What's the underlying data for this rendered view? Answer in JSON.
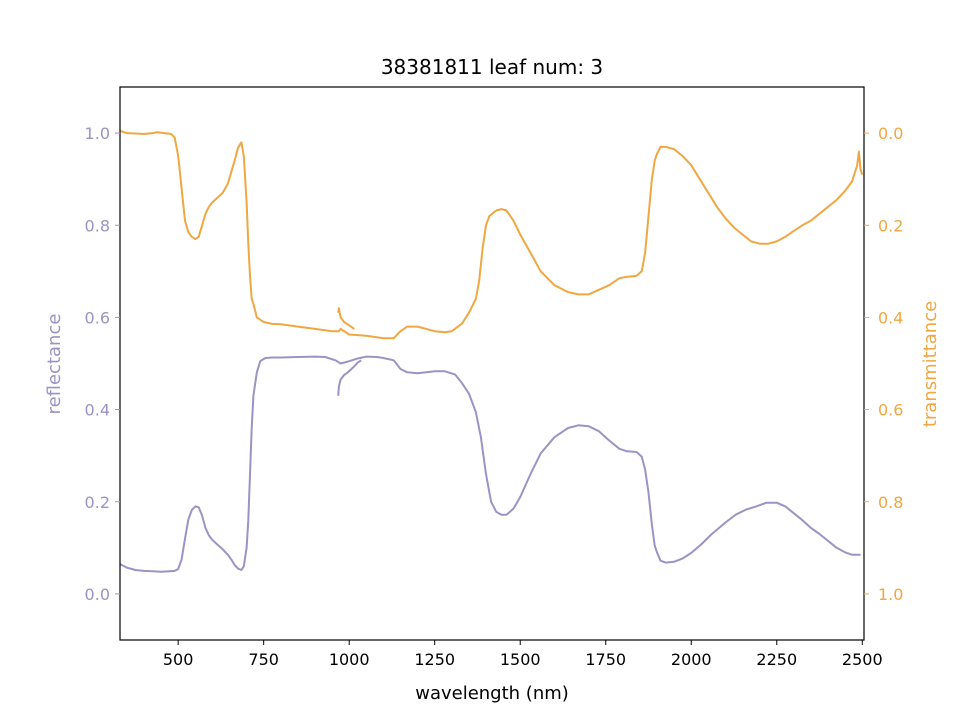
{
  "chart_data": {
    "type": "line",
    "title": "38381811 leaf num: 3",
    "xlabel": "wavelength (nm)",
    "xlim": [
      330,
      2505
    ],
    "x_ticks": [
      "500",
      "750",
      "1000",
      "1250",
      "1500",
      "1750",
      "2000",
      "2250",
      "2500"
    ],
    "grid": false,
    "axes": {
      "left": {
        "label": "reflectance",
        "color": "#9a94c4",
        "ylim": [
          -0.1,
          1.1
        ],
        "ticks": [
          "0.0",
          "0.2",
          "0.4",
          "0.6",
          "0.8",
          "1.0"
        ]
      },
      "right": {
        "label": "transmittance",
        "color": "#f0a742",
        "ylim": [
          1.1,
          -0.1
        ],
        "inverted": true,
        "ticks": [
          "0.0",
          "0.2",
          "0.4",
          "0.6",
          "0.8",
          "1.0"
        ]
      }
    },
    "series": [
      {
        "axis": "left",
        "color": "#9a94c4",
        "points": [
          [
            330,
            0.065
          ],
          [
            350,
            0.057
          ],
          [
            375,
            0.052
          ],
          [
            400,
            0.05
          ],
          [
            425,
            0.049
          ],
          [
            450,
            0.048
          ],
          [
            475,
            0.049
          ],
          [
            490,
            0.05
          ],
          [
            500,
            0.054
          ],
          [
            510,
            0.075
          ],
          [
            520,
            0.12
          ],
          [
            530,
            0.162
          ],
          [
            540,
            0.182
          ],
          [
            550,
            0.19
          ],
          [
            560,
            0.188
          ],
          [
            570,
            0.17
          ],
          [
            580,
            0.143
          ],
          [
            590,
            0.127
          ],
          [
            600,
            0.117
          ],
          [
            615,
            0.107
          ],
          [
            630,
            0.097
          ],
          [
            645,
            0.085
          ],
          [
            655,
            0.075
          ],
          [
            665,
            0.063
          ],
          [
            675,
            0.055
          ],
          [
            685,
            0.052
          ],
          [
            692,
            0.06
          ],
          [
            700,
            0.1
          ],
          [
            705,
            0.16
          ],
          [
            710,
            0.26
          ],
          [
            715,
            0.36
          ],
          [
            720,
            0.43
          ],
          [
            730,
            0.48
          ],
          [
            740,
            0.505
          ],
          [
            755,
            0.512
          ],
          [
            775,
            0.513
          ],
          [
            800,
            0.513
          ],
          [
            850,
            0.514
          ],
          [
            900,
            0.515
          ],
          [
            930,
            0.514
          ],
          [
            960,
            0.507
          ],
          [
            975,
            0.5
          ],
          [
            990,
            0.503
          ],
          [
            1000,
            0.505
          ],
          [
            1020,
            0.51
          ],
          [
            1050,
            0.515
          ],
          [
            1080,
            0.514
          ],
          [
            1100,
            0.512
          ],
          [
            1130,
            0.507
          ],
          [
            1150,
            0.488
          ],
          [
            1170,
            0.481
          ],
          [
            1200,
            0.479
          ],
          [
            1250,
            0.483
          ],
          [
            1280,
            0.483
          ],
          [
            1310,
            0.476
          ],
          [
            1330,
            0.457
          ],
          [
            1350,
            0.435
          ],
          [
            1370,
            0.395
          ],
          [
            1385,
            0.34
          ],
          [
            1400,
            0.26
          ],
          [
            1415,
            0.2
          ],
          [
            1430,
            0.178
          ],
          [
            1445,
            0.172
          ],
          [
            1460,
            0.172
          ],
          [
            1480,
            0.185
          ],
          [
            1500,
            0.21
          ],
          [
            1530,
            0.26
          ],
          [
            1560,
            0.305
          ],
          [
            1600,
            0.34
          ],
          [
            1640,
            0.36
          ],
          [
            1670,
            0.366
          ],
          [
            1700,
            0.364
          ],
          [
            1730,
            0.353
          ],
          [
            1760,
            0.333
          ],
          [
            1790,
            0.315
          ],
          [
            1810,
            0.31
          ],
          [
            1840,
            0.308
          ],
          [
            1855,
            0.298
          ],
          [
            1865,
            0.27
          ],
          [
            1875,
            0.22
          ],
          [
            1885,
            0.15
          ],
          [
            1893,
            0.105
          ],
          [
            1900,
            0.09
          ],
          [
            1910,
            0.072
          ],
          [
            1925,
            0.068
          ],
          [
            1950,
            0.07
          ],
          [
            1975,
            0.077
          ],
          [
            2000,
            0.089
          ],
          [
            2030,
            0.108
          ],
          [
            2060,
            0.13
          ],
          [
            2100,
            0.155
          ],
          [
            2130,
            0.172
          ],
          [
            2160,
            0.183
          ],
          [
            2190,
            0.19
          ],
          [
            2220,
            0.198
          ],
          [
            2250,
            0.198
          ],
          [
            2275,
            0.19
          ],
          [
            2300,
            0.175
          ],
          [
            2325,
            0.16
          ],
          [
            2350,
            0.143
          ],
          [
            2375,
            0.13
          ],
          [
            2400,
            0.115
          ],
          [
            2425,
            0.1
          ],
          [
            2450,
            0.09
          ],
          [
            2470,
            0.085
          ],
          [
            2485,
            0.085
          ],
          [
            2495,
            0.085
          ]
        ]
      },
      {
        "axis": "left",
        "color": "#9a94c4",
        "points": [
          [
            968,
            0.43
          ],
          [
            970,
            0.45
          ],
          [
            975,
            0.465
          ],
          [
            985,
            0.475
          ],
          [
            995,
            0.48
          ],
          [
            1005,
            0.487
          ],
          [
            1015,
            0.494
          ],
          [
            1025,
            0.502
          ],
          [
            1035,
            0.507
          ]
        ]
      },
      {
        "axis": "right",
        "color": "#f0a742",
        "points": [
          [
            330,
            -0.005
          ],
          [
            350,
            0.0
          ],
          [
            375,
            0.001
          ],
          [
            400,
            0.002
          ],
          [
            425,
            0.0
          ],
          [
            440,
            -0.002
          ],
          [
            460,
            0.0
          ],
          [
            480,
            0.002
          ],
          [
            490,
            0.01
          ],
          [
            500,
            0.05
          ],
          [
            510,
            0.12
          ],
          [
            520,
            0.19
          ],
          [
            530,
            0.215
          ],
          [
            540,
            0.225
          ],
          [
            550,
            0.23
          ],
          [
            560,
            0.225
          ],
          [
            570,
            0.2
          ],
          [
            580,
            0.175
          ],
          [
            590,
            0.16
          ],
          [
            600,
            0.15
          ],
          [
            615,
            0.14
          ],
          [
            630,
            0.13
          ],
          [
            645,
            0.11
          ],
          [
            655,
            0.085
          ],
          [
            665,
            0.06
          ],
          [
            675,
            0.032
          ],
          [
            685,
            0.02
          ],
          [
            692,
            0.05
          ],
          [
            700,
            0.15
          ],
          [
            705,
            0.24
          ],
          [
            710,
            0.31
          ],
          [
            715,
            0.36
          ],
          [
            720,
            0.37
          ],
          [
            730,
            0.4
          ],
          [
            740,
            0.405
          ],
          [
            750,
            0.41
          ],
          [
            775,
            0.414
          ],
          [
            800,
            0.415
          ],
          [
            850,
            0.42
          ],
          [
            900,
            0.425
          ],
          [
            950,
            0.43
          ],
          [
            970,
            0.43
          ],
          [
            975,
            0.425
          ],
          [
            1000,
            0.437
          ],
          [
            1050,
            0.44
          ],
          [
            1100,
            0.445
          ],
          [
            1130,
            0.445
          ],
          [
            1150,
            0.43
          ],
          [
            1170,
            0.42
          ],
          [
            1200,
            0.42
          ],
          [
            1250,
            0.43
          ],
          [
            1280,
            0.432
          ],
          [
            1300,
            0.43
          ],
          [
            1330,
            0.413
          ],
          [
            1350,
            0.39
          ],
          [
            1370,
            0.36
          ],
          [
            1380,
            0.32
          ],
          [
            1390,
            0.25
          ],
          [
            1400,
            0.2
          ],
          [
            1410,
            0.18
          ],
          [
            1430,
            0.168
          ],
          [
            1445,
            0.165
          ],
          [
            1460,
            0.168
          ],
          [
            1480,
            0.19
          ],
          [
            1500,
            0.22
          ],
          [
            1530,
            0.26
          ],
          [
            1560,
            0.3
          ],
          [
            1600,
            0.33
          ],
          [
            1640,
            0.345
          ],
          [
            1670,
            0.35
          ],
          [
            1700,
            0.35
          ],
          [
            1730,
            0.34
          ],
          [
            1760,
            0.33
          ],
          [
            1790,
            0.315
          ],
          [
            1810,
            0.312
          ],
          [
            1840,
            0.31
          ],
          [
            1855,
            0.3
          ],
          [
            1865,
            0.26
          ],
          [
            1875,
            0.18
          ],
          [
            1885,
            0.1
          ],
          [
            1893,
            0.06
          ],
          [
            1900,
            0.045
          ],
          [
            1910,
            0.03
          ],
          [
            1925,
            0.03
          ],
          [
            1950,
            0.035
          ],
          [
            1975,
            0.05
          ],
          [
            2000,
            0.07
          ],
          [
            2025,
            0.1
          ],
          [
            2050,
            0.13
          ],
          [
            2075,
            0.16
          ],
          [
            2100,
            0.185
          ],
          [
            2125,
            0.205
          ],
          [
            2150,
            0.22
          ],
          [
            2175,
            0.235
          ],
          [
            2200,
            0.24
          ],
          [
            2225,
            0.24
          ],
          [
            2250,
            0.235
          ],
          [
            2275,
            0.225
          ],
          [
            2300,
            0.212
          ],
          [
            2325,
            0.2
          ],
          [
            2350,
            0.19
          ],
          [
            2375,
            0.175
          ],
          [
            2400,
            0.16
          ],
          [
            2425,
            0.145
          ],
          [
            2450,
            0.125
          ],
          [
            2470,
            0.105
          ],
          [
            2485,
            0.07
          ],
          [
            2490,
            0.04
          ],
          [
            2495,
            0.08
          ],
          [
            2500,
            0.09
          ]
        ]
      },
      {
        "axis": "right",
        "color": "#f0a742",
        "points": [
          [
            968,
            0.39
          ],
          [
            970,
            0.38
          ],
          [
            975,
            0.4
          ],
          [
            985,
            0.41
          ],
          [
            995,
            0.415
          ],
          [
            1005,
            0.42
          ],
          [
            1015,
            0.425
          ]
        ]
      }
    ]
  }
}
